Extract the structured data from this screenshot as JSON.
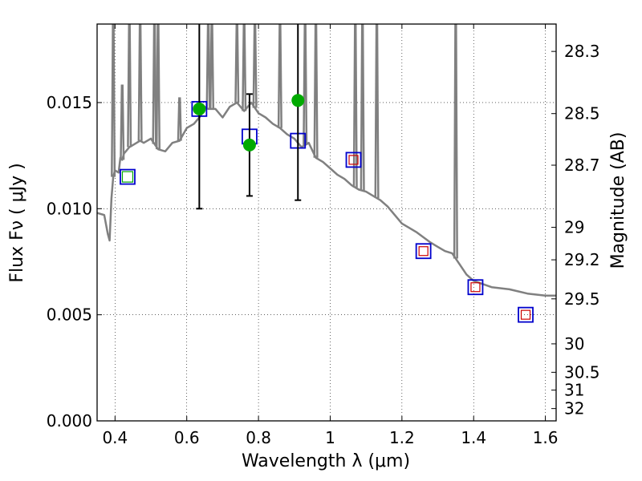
{
  "chart_data": {
    "type": "line",
    "xlabel": "Wavelength  λ (μm)",
    "ylabel": "Flux  Fν  ( μJy )",
    "y2label": "Magnitude (AB)",
    "xlim": [
      0.35,
      1.63
    ],
    "ylim": [
      0.0,
      0.0187
    ],
    "xticks": [
      {
        "value": 0.4,
        "label": "0.4"
      },
      {
        "value": 0.6,
        "label": "0.6"
      },
      {
        "value": 0.8,
        "label": "0.8"
      },
      {
        "value": 1.0,
        "label": "1"
      },
      {
        "value": 1.2,
        "label": "1.2"
      },
      {
        "value": 1.4,
        "label": "1.4"
      },
      {
        "value": 1.6,
        "label": "1.6"
      }
    ],
    "yticks": [
      {
        "value": 0.0,
        "label": "0.000"
      },
      {
        "value": 0.005,
        "label": "0.005"
      },
      {
        "value": 0.01,
        "label": "0.010"
      },
      {
        "value": 0.015,
        "label": "0.015"
      }
    ],
    "y2ticks": [
      {
        "label": "28.3",
        "flux": 0.01741
      },
      {
        "label": "28.5",
        "flux": 0.01448
      },
      {
        "label": "28.7",
        "flux": 0.01205
      },
      {
        "label": "29",
        "flux": 0.00912
      },
      {
        "label": "29.2",
        "flux": 0.00759
      },
      {
        "label": "29.5",
        "flux": 0.00575
      },
      {
        "label": "30",
        "flux": 0.00363
      },
      {
        "label": "30.5",
        "flux": 0.00229
      },
      {
        "label": "31",
        "flux": 0.00145
      },
      {
        "label": "32",
        "flux": 0.00058
      }
    ],
    "grid": true,
    "colors": {
      "model": "#808080",
      "observed": "#00aa00",
      "model_box": "#0000cc",
      "inner_box_red": "#cc0000",
      "inner_box_green": "#00aa00",
      "errorbar": "#000000"
    },
    "series": [
      {
        "kind": "model_sed",
        "x": [
          0.35,
          0.37,
          0.38,
          0.385,
          0.39,
          0.395,
          0.4,
          0.41,
          0.415,
          0.42,
          0.425,
          0.43,
          0.44,
          0.45,
          0.46,
          0.47,
          0.48,
          0.5,
          0.52,
          0.54,
          0.56,
          0.58,
          0.6,
          0.62,
          0.64,
          0.65,
          0.66,
          0.68,
          0.7,
          0.72,
          0.74,
          0.76,
          0.78,
          0.8,
          0.82,
          0.84,
          0.86,
          0.88,
          0.9,
          0.92,
          0.94,
          0.96,
          0.98,
          1.0,
          1.02,
          1.04,
          1.06,
          1.08,
          1.1,
          1.12,
          1.14,
          1.16,
          1.18,
          1.2,
          1.24,
          1.28,
          1.3,
          1.32,
          1.34,
          1.36,
          1.38,
          1.4,
          1.45,
          1.5,
          1.55,
          1.6,
          1.63
        ],
        "y": [
          0.0098,
          0.0097,
          0.0088,
          0.0085,
          0.0105,
          0.0115,
          0.0118,
          0.0117,
          0.0124,
          0.0123,
          0.0126,
          0.0127,
          0.0129,
          0.013,
          0.0131,
          0.0132,
          0.0131,
          0.0133,
          0.0128,
          0.0127,
          0.0131,
          0.0132,
          0.0138,
          0.014,
          0.0144,
          0.0148,
          0.0147,
          0.0147,
          0.0143,
          0.0148,
          0.015,
          0.0146,
          0.015,
          0.0145,
          0.0143,
          0.014,
          0.0138,
          0.0135,
          0.0133,
          0.0129,
          0.0131,
          0.0124,
          0.0122,
          0.0119,
          0.0116,
          0.0114,
          0.0111,
          0.0109,
          0.0108,
          0.0106,
          0.0104,
          0.0101,
          0.0097,
          0.0093,
          0.0089,
          0.0084,
          0.0082,
          0.008,
          0.0079,
          0.0074,
          0.0069,
          0.0066,
          0.0063,
          0.0062,
          0.006,
          0.0059,
          0.0059
        ]
      },
      {
        "kind": "emission_lines",
        "lines": [
          {
            "x": 0.395,
            "peak": 0.0187
          },
          {
            "x": 0.42,
            "peak": 0.0158
          },
          {
            "x": 0.44,
            "peak": 0.0187
          },
          {
            "x": 0.47,
            "peak": 0.0187
          },
          {
            "x": 0.51,
            "peak": 0.0187
          },
          {
            "x": 0.52,
            "peak": 0.0187
          },
          {
            "x": 0.58,
            "peak": 0.0152
          },
          {
            "x": 0.66,
            "peak": 0.0187
          },
          {
            "x": 0.67,
            "peak": 0.0187
          },
          {
            "x": 0.74,
            "peak": 0.0187
          },
          {
            "x": 0.76,
            "peak": 0.0187
          },
          {
            "x": 0.79,
            "peak": 0.0187
          },
          {
            "x": 0.86,
            "peak": 0.0187
          },
          {
            "x": 0.93,
            "peak": 0.0187
          },
          {
            "x": 0.96,
            "peak": 0.0187
          },
          {
            "x": 1.07,
            "peak": 0.0187
          },
          {
            "x": 1.09,
            "peak": 0.0187
          },
          {
            "x": 1.13,
            "peak": 0.0187
          },
          {
            "x": 1.35,
            "peak": 0.0187
          }
        ]
      },
      {
        "kind": "observed_points",
        "points": [
          {
            "x": 0.635,
            "y": 0.0147,
            "err": 0.0047
          },
          {
            "x": 0.775,
            "y": 0.013,
            "err": 0.0024
          },
          {
            "x": 0.91,
            "y": 0.0151,
            "err": 0.0047
          }
        ]
      },
      {
        "kind": "model_photometry",
        "points": [
          {
            "x": 0.435,
            "y": 0.0115,
            "inner": "green"
          },
          {
            "x": 0.635,
            "y": 0.0147,
            "inner": "none"
          },
          {
            "x": 0.775,
            "y": 0.0134,
            "inner": "none"
          },
          {
            "x": 0.91,
            "y": 0.0132,
            "inner": "none"
          },
          {
            "x": 1.065,
            "y": 0.0123,
            "inner": "red"
          },
          {
            "x": 1.26,
            "y": 0.008,
            "inner": "red"
          },
          {
            "x": 1.405,
            "y": 0.0063,
            "inner": "red"
          },
          {
            "x": 1.545,
            "y": 0.005,
            "inner": "red"
          }
        ]
      }
    ]
  }
}
